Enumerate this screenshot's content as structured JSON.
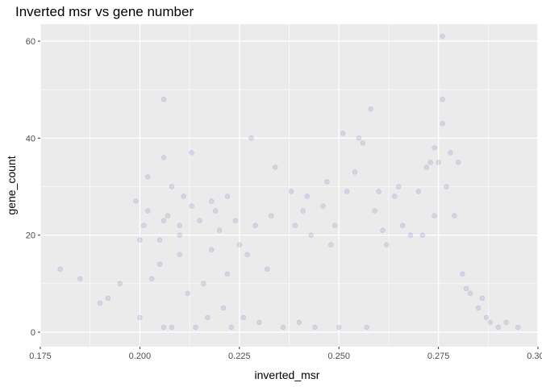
{
  "chart_data": {
    "type": "scatter",
    "title": "Inverted msr vs gene number",
    "xlabel": "inverted_msr",
    "ylabel": "gene_count",
    "xlim": [
      0.175,
      0.3
    ],
    "ylim": [
      -3,
      63.5
    ],
    "x_ticks": [
      0.175,
      0.2,
      0.225,
      0.25,
      0.275,
      0.3
    ],
    "x_tick_labels": [
      "0.175",
      "0.200",
      "0.225",
      "0.250",
      "0.275",
      "0.300"
    ],
    "y_ticks": [
      0,
      20,
      40,
      60
    ],
    "y_tick_labels": [
      "0",
      "20",
      "40",
      "60"
    ],
    "grid": true,
    "background": "#ebebeb",
    "grid_color": "#ffffff",
    "point_color": "#00008b",
    "point_alpha": 0.1,
    "points": [
      [
        0.18,
        13
      ],
      [
        0.185,
        11
      ],
      [
        0.19,
        6
      ],
      [
        0.192,
        7
      ],
      [
        0.195,
        10
      ],
      [
        0.199,
        27
      ],
      [
        0.2,
        19
      ],
      [
        0.2,
        3
      ],
      [
        0.201,
        22
      ],
      [
        0.202,
        32
      ],
      [
        0.202,
        25
      ],
      [
        0.203,
        11
      ],
      [
        0.205,
        19
      ],
      [
        0.205,
        14
      ],
      [
        0.206,
        23
      ],
      [
        0.206,
        48
      ],
      [
        0.206,
        36
      ],
      [
        0.206,
        1
      ],
      [
        0.207,
        24
      ],
      [
        0.208,
        30
      ],
      [
        0.208,
        1
      ],
      [
        0.21,
        22
      ],
      [
        0.21,
        20
      ],
      [
        0.21,
        16
      ],
      [
        0.211,
        28
      ],
      [
        0.212,
        8
      ],
      [
        0.213,
        26
      ],
      [
        0.213,
        37
      ],
      [
        0.214,
        1
      ],
      [
        0.215,
        23
      ],
      [
        0.216,
        10
      ],
      [
        0.217,
        3
      ],
      [
        0.218,
        27
      ],
      [
        0.218,
        17
      ],
      [
        0.219,
        25
      ],
      [
        0.22,
        21
      ],
      [
        0.221,
        5
      ],
      [
        0.222,
        12
      ],
      [
        0.222,
        28
      ],
      [
        0.223,
        1
      ],
      [
        0.224,
        23
      ],
      [
        0.225,
        18
      ],
      [
        0.226,
        3
      ],
      [
        0.227,
        16
      ],
      [
        0.228,
        40
      ],
      [
        0.229,
        22
      ],
      [
        0.23,
        2
      ],
      [
        0.232,
        13
      ],
      [
        0.233,
        24
      ],
      [
        0.234,
        34
      ],
      [
        0.236,
        1
      ],
      [
        0.238,
        29
      ],
      [
        0.239,
        22
      ],
      [
        0.24,
        2
      ],
      [
        0.241,
        25
      ],
      [
        0.242,
        28
      ],
      [
        0.243,
        20
      ],
      [
        0.244,
        1
      ],
      [
        0.246,
        26
      ],
      [
        0.247,
        31
      ],
      [
        0.248,
        18
      ],
      [
        0.249,
        22
      ],
      [
        0.25,
        1
      ],
      [
        0.251,
        41
      ],
      [
        0.252,
        29
      ],
      [
        0.254,
        33
      ],
      [
        0.255,
        40
      ],
      [
        0.256,
        39
      ],
      [
        0.257,
        1
      ],
      [
        0.258,
        46
      ],
      [
        0.259,
        25
      ],
      [
        0.26,
        29
      ],
      [
        0.261,
        21
      ],
      [
        0.262,
        18
      ],
      [
        0.264,
        28
      ],
      [
        0.265,
        30
      ],
      [
        0.266,
        22
      ],
      [
        0.268,
        20
      ],
      [
        0.27,
        29
      ],
      [
        0.271,
        20
      ],
      [
        0.272,
        34
      ],
      [
        0.273,
        35
      ],
      [
        0.274,
        24
      ],
      [
        0.274,
        38
      ],
      [
        0.275,
        35
      ],
      [
        0.276,
        61
      ],
      [
        0.276,
        48
      ],
      [
        0.276,
        43
      ],
      [
        0.277,
        30
      ],
      [
        0.278,
        37
      ],
      [
        0.279,
        24
      ],
      [
        0.28,
        35
      ],
      [
        0.281,
        12
      ],
      [
        0.282,
        9
      ],
      [
        0.283,
        8
      ],
      [
        0.285,
        5
      ],
      [
        0.286,
        7
      ],
      [
        0.287,
        3
      ],
      [
        0.288,
        2
      ],
      [
        0.29,
        1
      ],
      [
        0.292,
        2
      ],
      [
        0.295,
        1
      ]
    ]
  }
}
